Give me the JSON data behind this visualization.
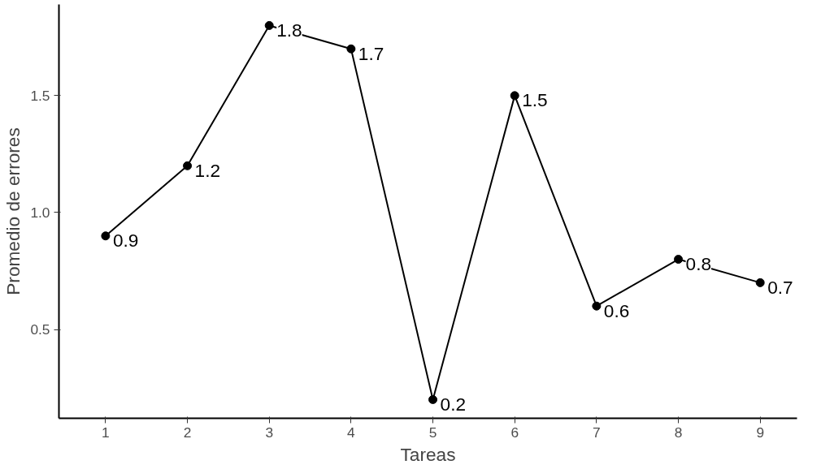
{
  "chart_data": {
    "type": "line",
    "xlabel": "Tareas",
    "ylabel": "Promedio de errores",
    "x": [
      1,
      2,
      3,
      4,
      5,
      6,
      7,
      8,
      9
    ],
    "series": [
      {
        "color": "#000000",
        "values": [
          0.9,
          1.2,
          1.8,
          1.7,
          0.2,
          1.5,
          0.6,
          0.8,
          0.7
        ]
      }
    ],
    "xlim": [
      0.43,
      9.45
    ],
    "xticks": [
      1,
      2,
      3,
      4,
      5,
      6,
      7,
      8,
      9
    ],
    "ylim": [
      0.12,
      1.89
    ],
    "yticks": [
      {
        "value": 0.5,
        "label": "0.5"
      },
      {
        "value": 1.0,
        "label": "1.0"
      },
      {
        "value": 1.5,
        "label": "1.5"
      }
    ],
    "marker": "circle",
    "line_style": "solid",
    "data_labels": true,
    "grid": false
  }
}
